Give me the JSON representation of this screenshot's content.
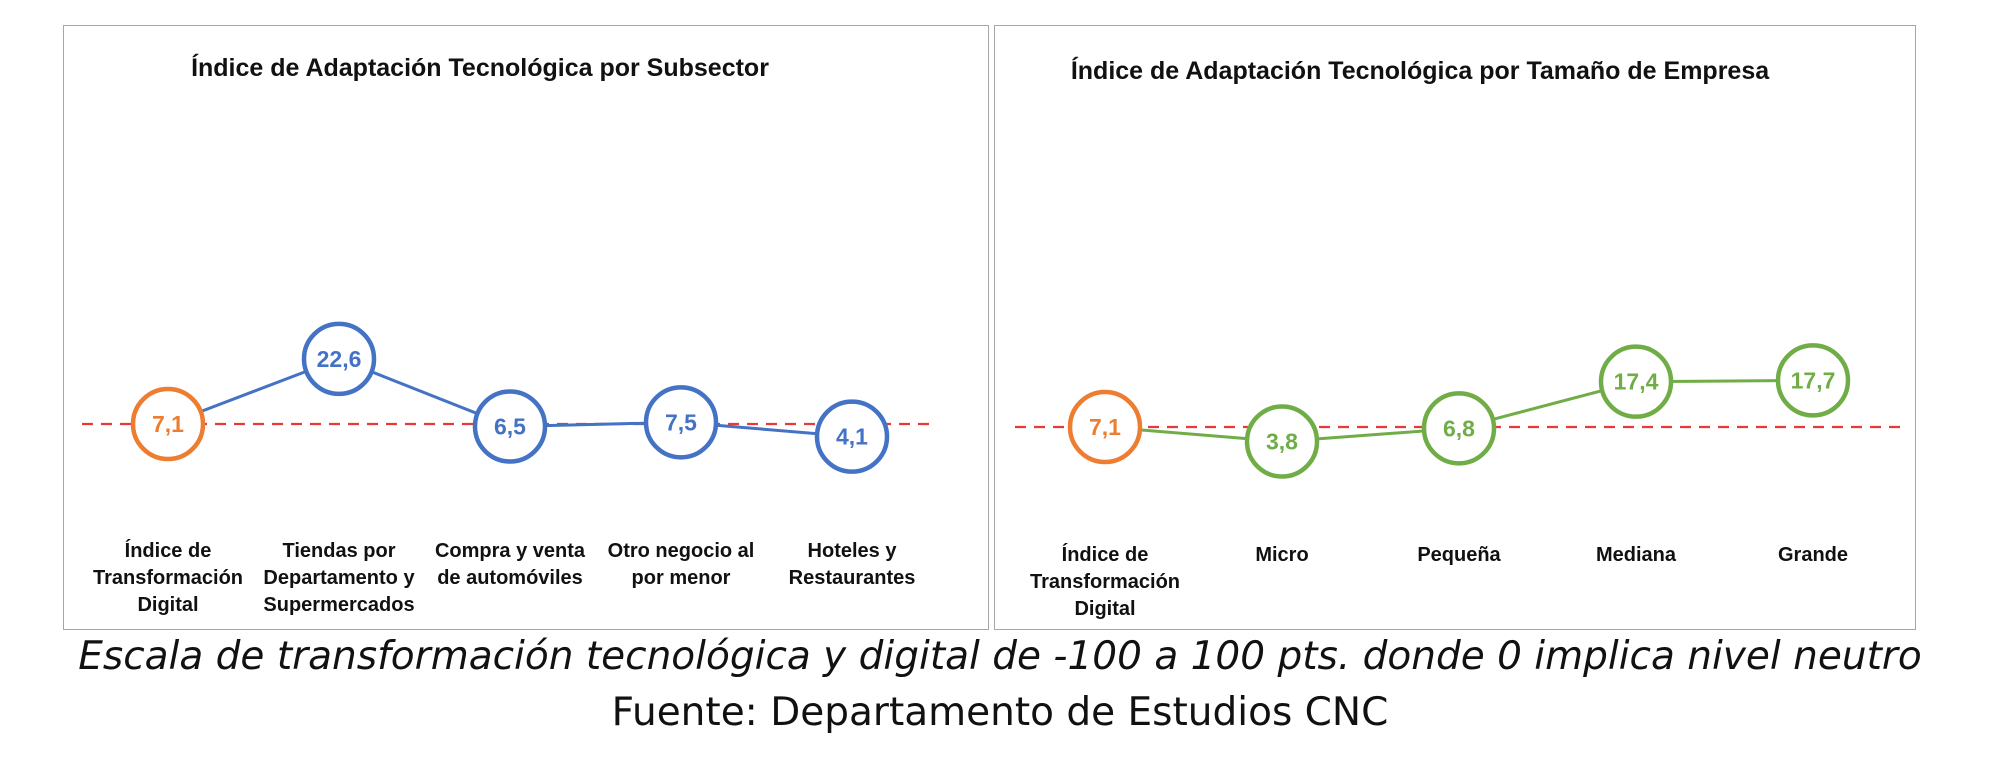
{
  "colors": {
    "index": "#ed7d31",
    "subsector": "#4472c4",
    "size": "#70ad47",
    "reference_line": "#e63a3a"
  },
  "chart_data": [
    {
      "type": "line",
      "title": "Índice de Adaptación Tecnológica por Subsector",
      "categories": [
        "Índice de Transformación Digital",
        "Tiendas por Departamento y Supermercados",
        "Compra y venta de automóviles",
        "Otro negocio al por menor",
        "Hoteles y Restaurantes"
      ],
      "category_lines": [
        [
          "Índice de",
          "Transformación",
          "Digital"
        ],
        [
          "Tiendas por",
          "Departamento y",
          "Supermercados"
        ],
        [
          "Compra y venta",
          "de automóviles"
        ],
        [
          "Otro negocio al",
          "por menor"
        ],
        [
          "Hoteles y",
          "Restaurantes"
        ]
      ],
      "values": [
        7.1,
        22.6,
        6.5,
        7.5,
        4.1
      ],
      "value_labels": [
        "7,1",
        "22,6",
        "6,5",
        "7,5",
        "4,1"
      ],
      "reference_value": 7.1,
      "reference_style": "dashed",
      "highlight_first": true,
      "grid": false,
      "legend": "none"
    },
    {
      "type": "line",
      "title": "Índice de Adaptación Tecnológica  por Tamaño de Empresa",
      "categories": [
        "Índice de Transformación Digital",
        "Micro",
        "Pequeña",
        "Mediana",
        "Grande"
      ],
      "category_lines": [
        [
          "Índice de",
          "Transformación",
          "Digital"
        ],
        [
          "Micro"
        ],
        [
          "Pequeña"
        ],
        [
          "Mediana"
        ],
        [
          "Grande"
        ]
      ],
      "values": [
        7.1,
        3.8,
        6.8,
        17.4,
        17.7
      ],
      "value_labels": [
        "7,1",
        "3,8",
        "6,8",
        "17,4",
        "17,7"
      ],
      "reference_value": 7.1,
      "reference_style": "dashed",
      "highlight_first": true,
      "grid": false,
      "legend": "none"
    }
  ],
  "footer": {
    "scale_note": "Escala de transformación tecnológica y digital de -100 a 100 pts. donde 0 implica nivel neutro",
    "source": "Fuente: Departamento de Estudios CNC"
  }
}
